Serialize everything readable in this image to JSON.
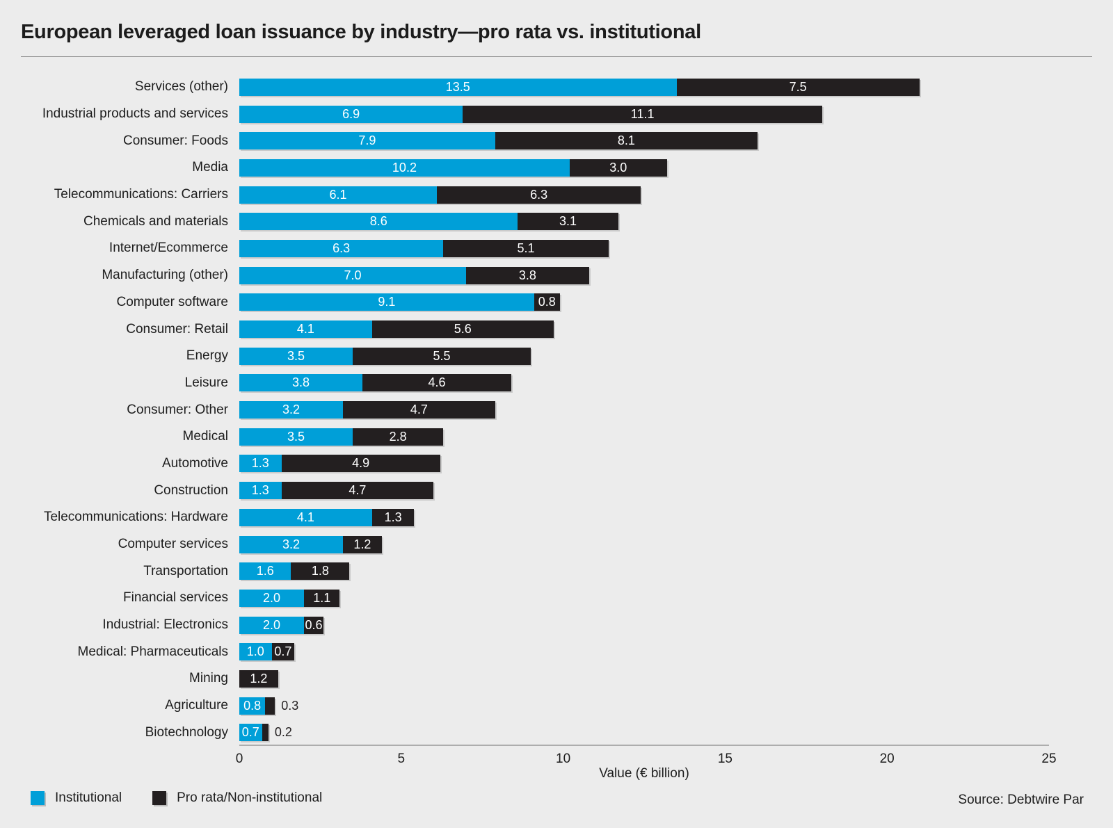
{
  "title": "European leveraged loan issuance by industry—pro rata vs. institutional",
  "source": "Source: Debtwire Par",
  "colors": {
    "background": "#ececec",
    "institutional": "#009fd8",
    "pro_rata": "#231f20",
    "axis_line": "#adadad",
    "text": "#1d1d1d"
  },
  "legend": [
    {
      "label": "Institutional",
      "color": "#009fd8"
    },
    {
      "label": "Pro rata/Non-institutional",
      "color": "#231f20"
    }
  ],
  "chart_data": {
    "type": "bar",
    "orientation": "horizontal",
    "stacked": true,
    "title": "European leveraged loan issuance by industry—pro rata vs. institutional",
    "xlabel": "Value (€ billion)",
    "xlim": [
      0,
      25
    ],
    "xticks": [
      0,
      5,
      10,
      15,
      20,
      25
    ],
    "grid": false,
    "legend_position": "bottom-left",
    "categories": [
      "Services (other)",
      "Industrial products and services",
      "Consumer: Foods",
      "Media",
      "Telecommunications: Carriers",
      "Chemicals and materials",
      "Internet/Ecommerce",
      "Manufacturing (other)",
      "Computer software",
      "Consumer: Retail",
      "Energy",
      "Leisure",
      "Consumer: Other",
      "Medical",
      "Automotive",
      "Construction",
      "Telecommunications: Hardware",
      "Computer services",
      "Transportation",
      "Financial services",
      "Industrial: Electronics",
      "Medical: Pharmaceuticals",
      "Mining",
      "Agriculture",
      "Biotechnology"
    ],
    "series": [
      {
        "name": "Institutional",
        "color": "#009fd8",
        "values": [
          13.5,
          6.9,
          7.9,
          10.2,
          6.1,
          8.6,
          6.3,
          7.0,
          9.1,
          4.1,
          3.5,
          3.8,
          3.2,
          3.5,
          1.3,
          1.3,
          4.1,
          3.2,
          1.6,
          2.0,
          2.0,
          1.0,
          0,
          0.8,
          0.7
        ]
      },
      {
        "name": "Pro rata/Non-institutional",
        "color": "#231f20",
        "values": [
          7.5,
          11.1,
          8.1,
          3.0,
          6.3,
          3.1,
          5.1,
          3.8,
          0.8,
          5.6,
          5.5,
          4.6,
          4.7,
          2.8,
          4.9,
          4.7,
          1.3,
          1.2,
          1.8,
          1.1,
          0.6,
          0.7,
          1.2,
          0.3,
          0.2
        ]
      }
    ]
  }
}
